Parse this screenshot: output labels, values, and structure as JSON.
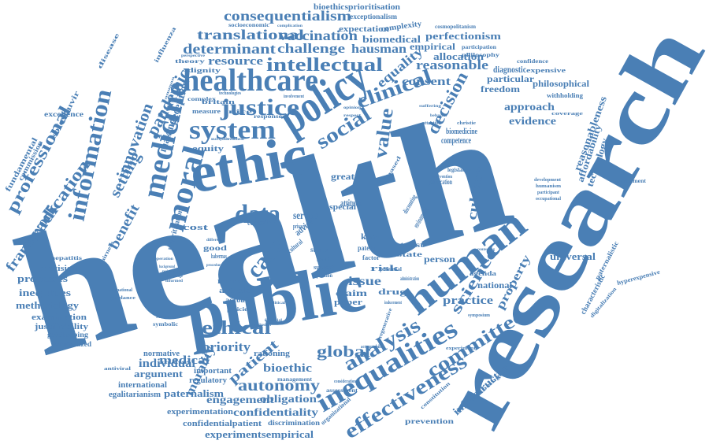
{
  "color": "#4a7fb5",
  "words": [
    "health",
    "research",
    "public",
    "ethic",
    "policy",
    "healthcare",
    "human",
    "medicine",
    "justice",
    "system",
    "moral",
    "data",
    "intellectual",
    "clinical",
    "social",
    "care",
    "information",
    "inequalities",
    "analysis",
    "effectiveness",
    "committee",
    "global",
    "ethical",
    "autonomy",
    "value",
    "decision",
    "eradication",
    "professional",
    "benefit",
    "setting",
    "innovation",
    "pandemic",
    "framework",
    "consequentialism",
    "translational",
    "vaccination",
    "determinant",
    "challenge",
    "hausman",
    "equality",
    "reasonable",
    "consent",
    "perfectionism",
    "biomedical",
    "empirical",
    "allocation",
    "resource",
    "science",
    "property",
    "culture",
    "practice",
    "patient",
    "priority",
    "medical",
    "individual",
    "argument",
    "morality",
    "paternalism",
    "engagement",
    "obligation",
    "confidentiality",
    "experimentsempirical",
    "confidentialpatient",
    "experimentation",
    "bioethic",
    "infrastructure",
    "approach",
    "evidence",
    "philosophical",
    "particular",
    "freedom",
    "reasonableness",
    "affordability",
    "technology",
    "universal",
    "national",
    "person",
    "making",
    "deception",
    "methodology",
    "inequities",
    "processes",
    "examination",
    "justifiability",
    "gatekeeping",
    "personalized",
    "international",
    "egalitarianism",
    "normative",
    "rationing",
    "important",
    "regulatory",
    "discrimination",
    "management",
    "bioethicsprioritisation",
    "exceptionalism",
    "expectation",
    "complexity",
    "cosmopolitanism",
    "participation",
    "philosophy",
    "socioeconomic",
    "complication",
    "perspective",
    "fundamental",
    "commission",
    "excellence",
    "sofosbuvir",
    "hepatitis",
    "precision",
    "influenza",
    "disease",
    "theory",
    "dignity",
    "britain",
    "measure",
    "complex",
    "response",
    "nice",
    "equity",
    "cost",
    "good",
    "more",
    "article",
    "account",
    "policies",
    "service",
    "special",
    "attitude",
    "great",
    "issue",
    "claim",
    "paper",
    "drug",
    "risk",
    "trust",
    "state",
    "kant",
    "patent",
    "factor",
    "context",
    "advice",
    "privacy",
    "cultural",
    "status",
    "model",
    "subject",
    "question",
    "potential",
    "administration",
    "competence",
    "biomedicine",
    "environmental",
    "discounting",
    "justification",
    "intervention",
    "legislation",
    "expensive",
    "confidence",
    "withholding",
    "coverage",
    "diagnostic",
    "paternalistic",
    "hyperexpensive",
    "characteristic",
    "digitalization",
    "environment",
    "occupational",
    "participant",
    "humanism",
    "development",
    "agenda",
    "symposium",
    "experiment",
    "prevention",
    "wellbeing",
    "constitution",
    "organizational",
    "regenerative",
    "accountability",
    "consideration",
    "assessment",
    "inducement",
    "uk'snational",
    "guidance",
    "standard",
    "symbolic",
    "antiviral",
    "fairness",
    "operation",
    "background",
    "knowledge",
    "principle",
    "informed",
    "habermas",
    "different",
    "procedure",
    "prioritisation",
    "unacceptable",
    "treatment",
    "counseling",
    "christie",
    "attention",
    "behavior",
    "suffering",
    "based",
    "respect",
    "opinion",
    "involvement",
    "technologies",
    "common",
    "financial",
    "political",
    "conclusion"
  ]
}
